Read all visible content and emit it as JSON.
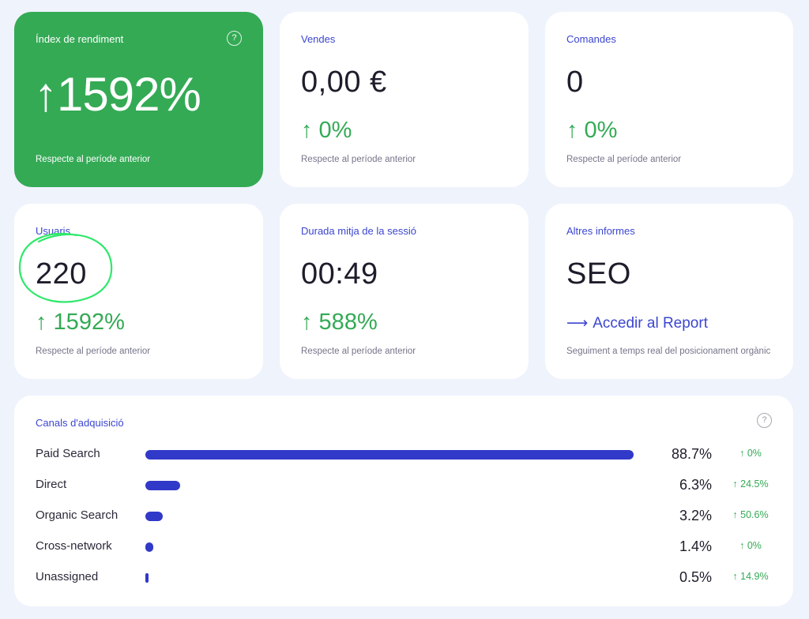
{
  "cards": {
    "index": {
      "title": "Índex de rendiment",
      "value": "↑1592%",
      "note": "Respecte al període anterior",
      "help_icon": "?"
    },
    "sales": {
      "title": "Vendes",
      "value": "0,00 €",
      "delta": "↑ 0%",
      "note": "Respecte al període anterior"
    },
    "orders": {
      "title": "Comandes",
      "value": "0",
      "delta": "↑ 0%",
      "note": "Respecte al període anterior"
    },
    "users": {
      "title": "Usuaris",
      "value": "220",
      "delta": "↑ 1592%",
      "note": "Respecte al període anterior"
    },
    "session": {
      "title": "Durada mitja de la sessió",
      "value": "00:49",
      "delta": "↑ 588%",
      "note": "Respecte al període anterior"
    },
    "reports": {
      "title": "Altres informes",
      "value": "SEO",
      "link_arrow": "⟶",
      "link_label": "Accedir al Report",
      "note": "Seguiment a temps real del posicionament orgànic"
    }
  },
  "channels": {
    "title": "Canals d'adquisició",
    "help_icon": "?",
    "rows": [
      {
        "name": "Paid Search",
        "share": 88.7,
        "percent": "88.7%",
        "delta": "↑ 0%"
      },
      {
        "name": "Direct",
        "share": 6.3,
        "percent": "6.3%",
        "delta": "↑ 24.5%"
      },
      {
        "name": "Organic Search",
        "share": 3.2,
        "percent": "3.2%",
        "delta": "↑ 50.6%"
      },
      {
        "name": "Cross-network",
        "share": 1.4,
        "percent": "1.4%",
        "delta": "↑ 0%"
      },
      {
        "name": "Unassigned",
        "share": 0.5,
        "percent": "0.5%",
        "delta": "↑ 14.9%"
      }
    ]
  },
  "colors": {
    "accent": "#3b46cf",
    "positive": "#34aa55",
    "bar": "#3139c8",
    "background": "#eff3fc",
    "annotation": "#2ee86a"
  }
}
